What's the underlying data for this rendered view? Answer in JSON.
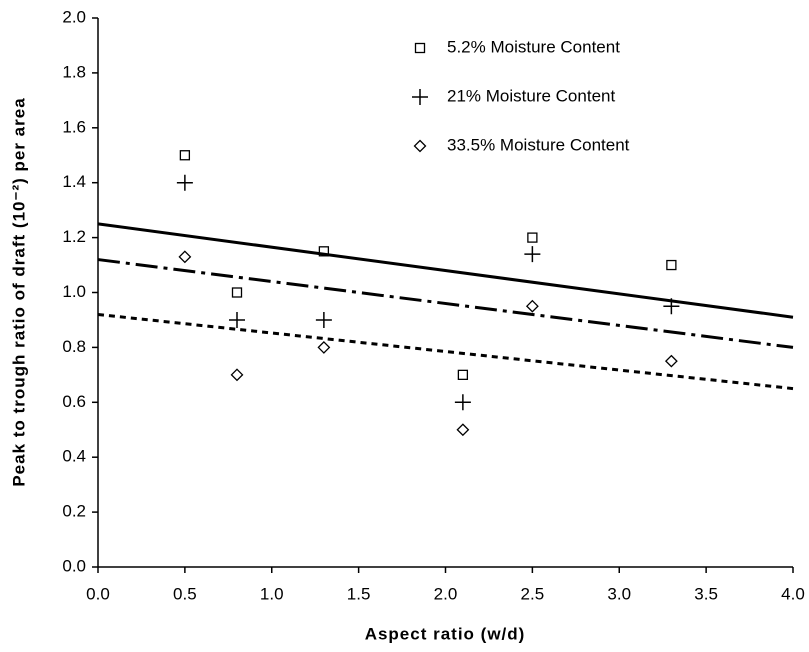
{
  "chart_data": {
    "type": "scatter",
    "xlabel": "Aspect ratio (w/d)",
    "ylabel": "Peak to trough ratio of draft (10⁻²) per area",
    "xlim": [
      0,
      4
    ],
    "ylim": [
      0,
      2
    ],
    "xticks": [
      {
        "value": 0,
        "label": "0.0"
      },
      {
        "value": 0.5,
        "label": "0.5"
      },
      {
        "value": 1,
        "label": "1.0"
      },
      {
        "value": 1.5,
        "label": "1.5"
      },
      {
        "value": 2,
        "label": "2.0"
      },
      {
        "value": 2.5,
        "label": "2.5"
      },
      {
        "value": 3,
        "label": "3.0"
      },
      {
        "value": 3.5,
        "label": "3.5"
      },
      {
        "value": 4,
        "label": "4.0"
      }
    ],
    "yticks": [
      {
        "value": 0,
        "label": "0.0"
      },
      {
        "value": 0.2,
        "label": "0.2"
      },
      {
        "value": 0.4,
        "label": "0.4"
      },
      {
        "value": 0.6,
        "label": "0.6"
      },
      {
        "value": 0.8,
        "label": "0.8"
      },
      {
        "value": 1,
        "label": "1.0"
      },
      {
        "value": 1.2,
        "label": "1.2"
      },
      {
        "value": 1.4,
        "label": "1.4"
      },
      {
        "value": 1.6,
        "label": "1.6"
      },
      {
        "value": 1.8,
        "label": "1.8"
      },
      {
        "value": 2,
        "label": "2.0"
      }
    ],
    "series": [
      {
        "name": "5.2% Moisture Content",
        "marker": "square",
        "color": "#000000",
        "x": [
          0.5,
          0.8,
          1.3,
          2.1,
          2.5,
          3.3
        ],
        "values": [
          1.5,
          1.0,
          1.15,
          0.7,
          1.2,
          1.1
        ]
      },
      {
        "name": "21% Moisture Content",
        "marker": "plus",
        "color": "#000000",
        "x": [
          0.5,
          0.8,
          1.3,
          2.1,
          2.5,
          3.3
        ],
        "values": [
          1.4,
          0.9,
          0.9,
          0.6,
          1.14,
          0.95
        ]
      },
      {
        "name": "33.5% Moisture Content",
        "marker": "diamond",
        "color": "#000000",
        "x": [
          0.5,
          0.8,
          1.3,
          2.1,
          2.5,
          3.3
        ],
        "values": [
          1.13,
          0.7,
          0.8,
          0.5,
          0.95,
          0.75
        ]
      }
    ],
    "trend_lines": [
      {
        "dash": "solid",
        "color": "#000000",
        "x": [
          0,
          4
        ],
        "values": [
          1.25,
          0.91
        ]
      },
      {
        "dash": "dash-dot",
        "color": "#000000",
        "x": [
          0,
          4
        ],
        "values": [
          1.12,
          0.8
        ]
      },
      {
        "dash": "dot",
        "color": "#000000",
        "x": [
          0,
          4
        ],
        "values": [
          0.92,
          0.65
        ]
      }
    ]
  }
}
